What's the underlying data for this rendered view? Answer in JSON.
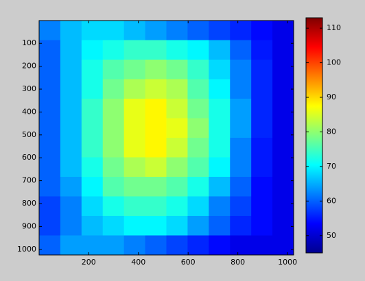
{
  "chart_data": {
    "type": "heatmap",
    "xlim": [
      0.5,
      1024.5
    ],
    "ylim": [
      0.5,
      1024.5
    ],
    "y_reversed": true,
    "xticks": [
      200,
      400,
      600,
      800,
      1000
    ],
    "yticks": [
      100,
      200,
      300,
      400,
      500,
      600,
      700,
      800,
      900,
      1000
    ],
    "clim": [
      45,
      113
    ],
    "cticks": [
      50,
      60,
      70,
      80,
      90,
      100,
      110
    ],
    "colormap": "jet",
    "values": [
      [
        62,
        66,
        68,
        68,
        66,
        64,
        62,
        60,
        58,
        56,
        54,
        52
      ],
      [
        60,
        66,
        70,
        72,
        74,
        74,
        72,
        70,
        66,
        60,
        55,
        52
      ],
      [
        60,
        66,
        72,
        76,
        78,
        80,
        78,
        74,
        68,
        62,
        56,
        52
      ],
      [
        60,
        66,
        72,
        78,
        82,
        84,
        82,
        76,
        70,
        62,
        56,
        52
      ],
      [
        60,
        66,
        74,
        80,
        86,
        88,
        84,
        78,
        72,
        64,
        56,
        52
      ],
      [
        60,
        66,
        74,
        80,
        86,
        88,
        86,
        80,
        72,
        64,
        56,
        52
      ],
      [
        60,
        66,
        74,
        80,
        86,
        88,
        84,
        78,
        72,
        62,
        55,
        52
      ],
      [
        60,
        66,
        72,
        78,
        82,
        84,
        80,
        76,
        70,
        62,
        55,
        52
      ],
      [
        60,
        64,
        70,
        76,
        78,
        78,
        76,
        72,
        66,
        60,
        54,
        52
      ],
      [
        58,
        62,
        68,
        72,
        74,
        74,
        72,
        68,
        62,
        58,
        54,
        52
      ],
      [
        58,
        62,
        66,
        68,
        70,
        70,
        68,
        64,
        60,
        56,
        54,
        52
      ],
      [
        60,
        64,
        64,
        64,
        62,
        60,
        58,
        56,
        54,
        52,
        52,
        52
      ]
    ]
  }
}
